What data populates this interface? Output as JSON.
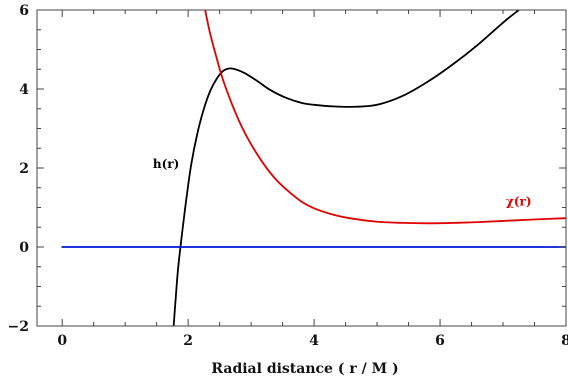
{
  "chart_data": {
    "type": "line",
    "title": "",
    "xlabel": "Radial distance ( r / M )",
    "ylabel": "",
    "xlim": [
      -0.4,
      8
    ],
    "ylim": [
      -2,
      6
    ],
    "x_ticks": [
      {
        "value": 0,
        "label": "0"
      },
      {
        "value": 2,
        "label": "2"
      },
      {
        "value": 4,
        "label": "4"
      },
      {
        "value": 6,
        "label": "6"
      },
      {
        "value": 8,
        "label": "8"
      }
    ],
    "y_ticks": [
      {
        "value": -2,
        "label": "−2"
      },
      {
        "value": 0,
        "label": "0"
      },
      {
        "value": 2,
        "label": "2"
      },
      {
        "value": 4,
        "label": "4"
      },
      {
        "value": 6,
        "label": "6"
      }
    ],
    "grid": false,
    "series": [
      {
        "name": "h(r)",
        "color": "#000000",
        "x": [
          1.77,
          1.8,
          1.84,
          1.9,
          1.97,
          2.05,
          2.15,
          2.25,
          2.35,
          2.45,
          2.55,
          2.65,
          2.75,
          2.9,
          3.1,
          3.3,
          3.55,
          3.8,
          4.0,
          4.3,
          4.65,
          5.0,
          5.4,
          5.8,
          6.2,
          6.6,
          7.0,
          7.25
        ],
        "y": [
          -2.0,
          -1.35,
          -0.55,
          0.3,
          1.2,
          2.1,
          2.9,
          3.5,
          3.95,
          4.25,
          4.45,
          4.52,
          4.5,
          4.4,
          4.2,
          3.98,
          3.78,
          3.65,
          3.6,
          3.56,
          3.55,
          3.6,
          3.82,
          4.18,
          4.62,
          5.12,
          5.68,
          6.0
        ]
      },
      {
        "name": "χ(r)",
        "color": "#e00000",
        "x": [
          2.27,
          2.35,
          2.45,
          2.55,
          2.7,
          2.85,
          3.0,
          3.2,
          3.4,
          3.6,
          3.8,
          4.0,
          4.3,
          4.6,
          5.0,
          5.4,
          5.8,
          6.2,
          6.6,
          7.0,
          7.4,
          8.0
        ],
        "y": [
          6.0,
          5.4,
          4.8,
          4.25,
          3.6,
          3.05,
          2.6,
          2.1,
          1.7,
          1.4,
          1.15,
          0.98,
          0.82,
          0.72,
          0.64,
          0.61,
          0.6,
          0.61,
          0.63,
          0.66,
          0.69,
          0.73
        ]
      },
      {
        "name": "",
        "color": "#0018d8",
        "x": [
          0,
          8
        ],
        "y": [
          0,
          0
        ]
      }
    ],
    "annotations": [
      {
        "text": "h(r)",
        "x": 1.65,
        "y": 2.0,
        "color": "#000000"
      },
      {
        "text": "χ(r)",
        "x": 7.25,
        "y": 1.05,
        "color": "#e00000"
      }
    ]
  }
}
